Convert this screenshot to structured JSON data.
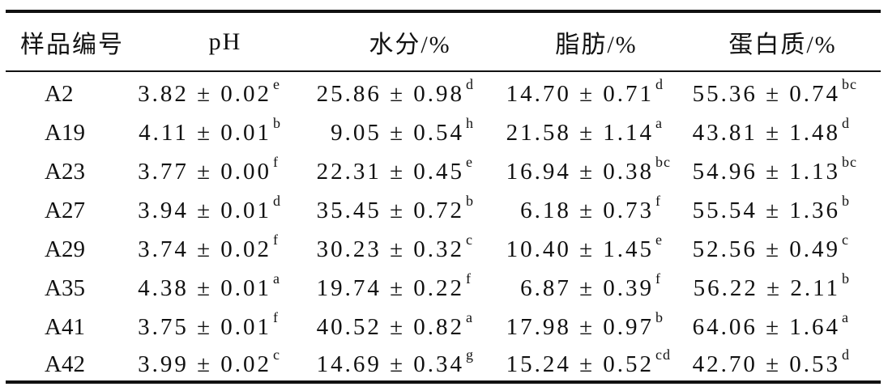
{
  "table": {
    "headers": [
      "样品编号",
      "pH",
      "水分/%",
      "脂肪/%",
      "蛋白质/%"
    ],
    "rows": [
      {
        "id": "A2",
        "ph": "3.82 ± 0.02",
        "ph_sup": "e",
        "water": "25.86 ± 0.98",
        "water_sup": "d",
        "fat": "14.70 ± 0.71",
        "fat_sup": "d",
        "protein": "55.36 ± 0.74",
        "protein_sup": "bc"
      },
      {
        "id": "A19",
        "ph": "4.11 ± 0.01",
        "ph_sup": "b",
        "water": "9.05 ± 0.54",
        "water_sup": "h",
        "fat": "21.58 ± 1.14",
        "fat_sup": "a",
        "protein": "43.81 ± 1.48",
        "protein_sup": "d"
      },
      {
        "id": "A23",
        "ph": "3.77 ± 0.00",
        "ph_sup": "f",
        "water": "22.31 ± 0.45",
        "water_sup": "e",
        "fat": "16.94 ± 0.38",
        "fat_sup": "bc",
        "protein": "54.96 ± 1.13",
        "protein_sup": "bc"
      },
      {
        "id": "A27",
        "ph": "3.94 ± 0.01",
        "ph_sup": "d",
        "water": "35.45 ± 0.72",
        "water_sup": "b",
        "fat": "6.18 ± 0.73",
        "fat_sup": "f",
        "protein": "55.54 ± 1.36",
        "protein_sup": "b"
      },
      {
        "id": "A29",
        "ph": "3.74 ± 0.02",
        "ph_sup": "f",
        "water": "30.23 ± 0.32",
        "water_sup": "c",
        "fat": "10.40 ± 1.45",
        "fat_sup": "e",
        "protein": "52.56 ± 0.49",
        "protein_sup": "c"
      },
      {
        "id": "A35",
        "ph": "4.38 ± 0.01",
        "ph_sup": "a",
        "water": "19.74 ± 0.22",
        "water_sup": "f",
        "fat": "6.87 ± 0.39",
        "fat_sup": "f",
        "protein": "56.22 ± 2.11",
        "protein_sup": "b"
      },
      {
        "id": "A41",
        "ph": "3.75 ± 0.01",
        "ph_sup": "f",
        "water": "40.52 ± 0.82",
        "water_sup": "a",
        "fat": "17.98 ± 0.97",
        "fat_sup": "b",
        "protein": "64.06 ± 1.64",
        "protein_sup": "a"
      },
      {
        "id": "A42",
        "ph": "3.99 ± 0.02",
        "ph_sup": "c",
        "water": "14.69 ± 0.34",
        "water_sup": "g",
        "fat": "15.24 ± 0.52",
        "fat_sup": "cd",
        "protein": "42.70 ± 0.53",
        "protein_sup": "d"
      }
    ]
  }
}
